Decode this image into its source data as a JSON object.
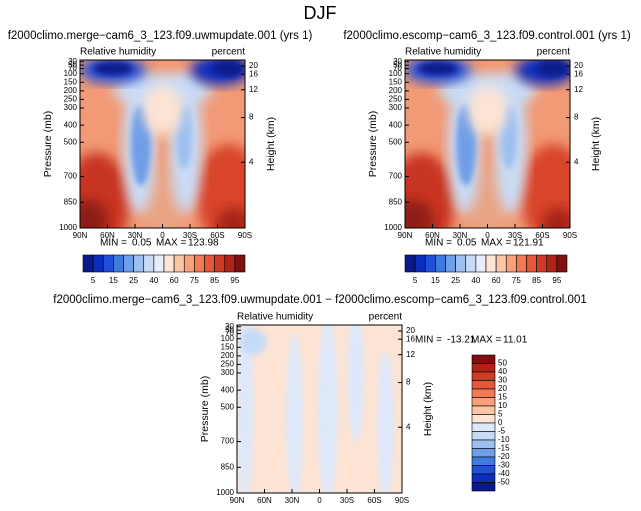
{
  "title": "DJF",
  "chart_data": [
    {
      "type": "contour",
      "title": "f2000climo.merge−cam6_3_123.f09.uwmupdate.001 (yrs 1)",
      "left_label": "Relative humidity",
      "right_label": "percent",
      "ylabel": "Pressure (mb)",
      "y2label": "Height (km)",
      "xlim": [
        90,
        -90
      ],
      "xticks": [
        {
          "value": 90,
          "label": "90N"
        },
        {
          "value": 60,
          "label": "60N"
        },
        {
          "value": 30,
          "label": "30N"
        },
        0,
        {
          "value": -30,
          "label": "30S"
        },
        {
          "value": -60,
          "label": "60S"
        },
        {
          "value": -90,
          "label": "90S"
        }
      ],
      "ylim": [
        1000,
        20
      ],
      "yticks": [
        1000,
        850,
        700,
        500,
        400,
        300,
        250,
        200,
        150,
        100,
        70,
        50,
        30
      ],
      "y2scale": "standard atmosphere",
      "y2ticks": [
        4,
        8,
        12,
        16,
        20
      ],
      "min_label": "MIN =",
      "min": 0.05,
      "max_label": "MAX =",
      "max": 123.98,
      "colorbar": {
        "orientation": "horizontal",
        "colors": [
          "#0a1a8c",
          "#0c2dbd",
          "#2050d8",
          "#3f7ae0",
          "#6ea0ea",
          "#9dc0f0",
          "#c6dbf6",
          "#e6eefb",
          "#fde4d4",
          "#fbc5a8",
          "#f8a07c",
          "#f27a55",
          "#e7573a",
          "#d13a24",
          "#b02418",
          "#7f1010"
        ],
        "labels": [
          5,
          15,
          25,
          40,
          60,
          75,
          85,
          95
        ]
      }
    },
    {
      "type": "contour",
      "title": "f2000climo.escomp−cam6_3_123.f09.control.001 (yrs 1)",
      "left_label": "Relative humidity",
      "right_label": "percent",
      "ylabel": "Pressure (mb)",
      "y2label": "Height (km)",
      "xlim": [
        90,
        -90
      ],
      "xticks": [
        {
          "value": 90,
          "label": "90N"
        },
        {
          "value": 60,
          "label": "60N"
        },
        {
          "value": 30,
          "label": "30N"
        },
        0,
        {
          "value": -30,
          "label": "30S"
        },
        {
          "value": -60,
          "label": "60S"
        },
        {
          "value": -90,
          "label": "90S"
        }
      ],
      "ylim": [
        1000,
        20
      ],
      "yticks": [
        1000,
        850,
        700,
        500,
        400,
        300,
        250,
        200,
        150,
        100,
        70,
        50,
        30
      ],
      "y2scale": "standard atmosphere",
      "y2ticks": [
        4,
        8,
        12,
        16,
        20
      ],
      "min_label": "MIN =",
      "min": 0.05,
      "max_label": "MAX =",
      "max": 121.91,
      "colorbar": {
        "orientation": "horizontal",
        "colors": [
          "#0a1a8c",
          "#0c2dbd",
          "#2050d8",
          "#3f7ae0",
          "#6ea0ea",
          "#9dc0f0",
          "#c6dbf6",
          "#e6eefb",
          "#fde4d4",
          "#fbc5a8",
          "#f8a07c",
          "#f27a55",
          "#e7573a",
          "#d13a24",
          "#b02418",
          "#7f1010"
        ],
        "labels": [
          5,
          15,
          25,
          40,
          60,
          75,
          85,
          95
        ]
      }
    },
    {
      "type": "contour-diff",
      "title": "f2000climo.merge−cam6_3_123.f09.uwmupdate.001 − f2000climo.escomp−cam6_3_123.f09.control.001",
      "left_label": "Relative humidity",
      "right_label": "percent",
      "ylabel": "Pressure (mb)",
      "y2label": "Height (km)",
      "xlim": [
        90,
        -90
      ],
      "xticks": [
        {
          "value": 90,
          "label": "90N"
        },
        {
          "value": 60,
          "label": "60N"
        },
        {
          "value": 30,
          "label": "30N"
        },
        0,
        {
          "value": -30,
          "label": "30S"
        },
        {
          "value": -60,
          "label": "60S"
        },
        {
          "value": -90,
          "label": "90S"
        }
      ],
      "ylim": [
        1000,
        20
      ],
      "yticks": [
        1000,
        850,
        700,
        500,
        400,
        300,
        250,
        200,
        150,
        100,
        70,
        50,
        30
      ],
      "y2scale": "standard atmosphere",
      "y2ticks": [
        4,
        8,
        12,
        16,
        20
      ],
      "min_label": "MIN =",
      "min": -13.21,
      "max_label": "MAX =",
      "max": 11.01,
      "colorbar": {
        "orientation": "vertical",
        "colors": [
          "#7f1010",
          "#b02418",
          "#d13a24",
          "#e7573a",
          "#f27a55",
          "#f8a07c",
          "#fbc5a8",
          "#fde4d4",
          "#dde8fb",
          "#c6dbf6",
          "#9dc0f0",
          "#6ea0ea",
          "#3f7ae0",
          "#2050d8",
          "#0c2dbd",
          "#0a1a8c"
        ],
        "labels": [
          50,
          40,
          30,
          20,
          15,
          10,
          5,
          0,
          -5,
          -10,
          -15,
          -20,
          -30,
          -40,
          -50
        ]
      }
    }
  ]
}
